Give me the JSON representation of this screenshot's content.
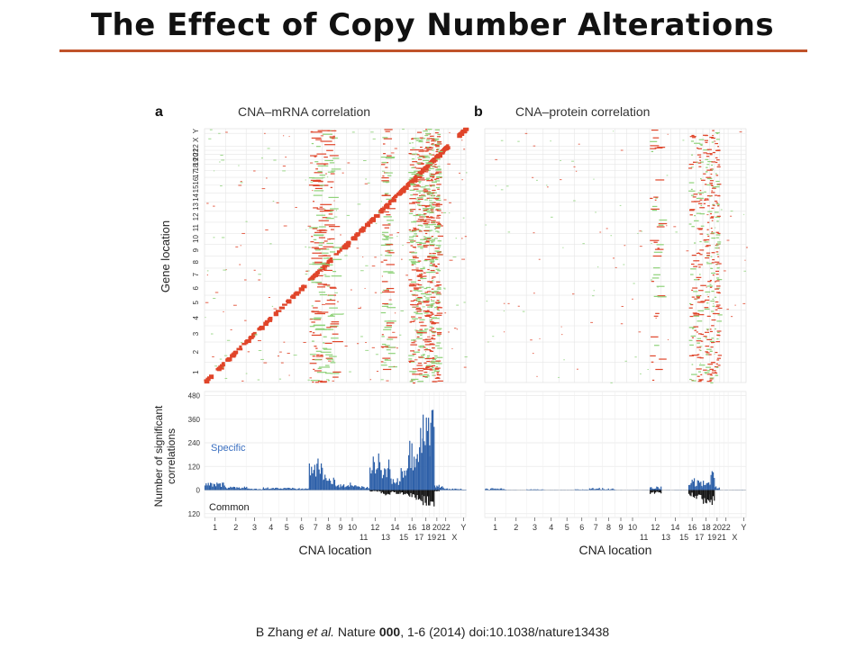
{
  "slide": {
    "title": "The Effect of Copy Number Alterations",
    "title_rule_color": "#c0532a"
  },
  "figure": {
    "panel_a": {
      "letter": "a",
      "heading": "CNA–mRNA correlation",
      "y_label": "Gene location",
      "x_label": "CNA location",
      "bar_y_label_line1": "Number of significant",
      "bar_y_label_line2": "correlations",
      "legend_specific": "Specific",
      "legend_common": "Common"
    },
    "panel_b": {
      "letter": "b",
      "heading": "CNA–protein correlation",
      "x_label": "CNA location"
    },
    "gene_axis_ticks": [
      "1",
      "2",
      "3",
      "4",
      "5",
      "6",
      "7",
      "8",
      "9",
      "10",
      "11",
      "12",
      "13",
      "14",
      "15",
      "16",
      "17",
      "18",
      "19",
      "20",
      "21",
      "22",
      "X",
      "Y"
    ],
    "cna_axis_ticks_upper": [
      "1",
      "2",
      "3",
      "4",
      "5",
      "6",
      "7",
      "8",
      "9",
      "10",
      "12",
      "14",
      "16",
      "18",
      "20",
      "22",
      "Y"
    ],
    "cna_axis_ticks_lower": [
      "11",
      "13",
      "15",
      "17",
      "19",
      "21",
      "X"
    ],
    "bar_axis_ticks": [
      "480",
      "360",
      "240",
      "120",
      "0",
      "120"
    ],
    "colors": {
      "positive_correlation": "#e0452a",
      "negative_correlation": "#8fd27a",
      "specific": "#2c5fa8",
      "common": "#111111",
      "specific_label": "#3a6fc0"
    }
  },
  "citation": {
    "author": "B Zhang ",
    "etal": "et al.",
    "journal": " Nature ",
    "volume": "000",
    "rest": ", 1-6 (2014) doi:10.1038/nature13438"
  }
}
